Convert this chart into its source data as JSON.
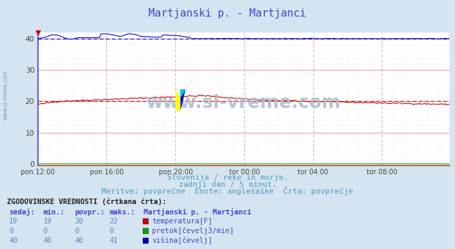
{
  "title": "Martjanski p. - Martjanci",
  "title_color": "#4444cc",
  "bg_color": "#d4e4f0",
  "plot_bg_color": "#ffffff",
  "xlabel_ticks": [
    "pon 12:00",
    "pon 16:00",
    "pon 20:00",
    "tor 00:00",
    "tor 04:00",
    "tor 08:00"
  ],
  "tick_positions": [
    0,
    48,
    96,
    144,
    192,
    240
  ],
  "total_points": 288,
  "ylim": [
    -0.5,
    42
  ],
  "yticks": [
    0,
    10,
    20,
    30,
    40
  ],
  "subtitle1": "Slovenija / reke in morje.",
  "subtitle2": "zadnji dan / 5 minut.",
  "subtitle3": "Meritve: povprečne  Enote: anglešaške  Črta: povprečje",
  "subtitle_color": "#5599bb",
  "grid_h_color": "#ee9999",
  "grid_v_color": "#ddaaaa",
  "grid_dot_color": "#ddcccc",
  "watermark": "www.si-vreme.com",
  "watermark_color": "#aabbcc",
  "temp_color": "#cc0000",
  "flow_color": "#00aa00",
  "height_color": "#0000bb",
  "table_header_color": "#4444cc",
  "table_data_color": "#5588bb",
  "legend_title": "Martjanski p. - Martjanci",
  "legend_items": [
    "temperatura[F]",
    "pretok[čevelj3/min]",
    "višina[čevelj]"
  ],
  "legend_colors": [
    "#cc0000",
    "#00aa00",
    "#0000bb"
  ],
  "table_label": "ZGODOVINSKE VREDNOSTI (črtkana črta):",
  "col_headers": [
    "sedaj:",
    "min.:",
    "povpr.:",
    "maks.:"
  ],
  "row_data": [
    [
      19,
      19,
      20,
      22
    ],
    [
      0,
      0,
      0,
      0
    ],
    [
      40,
      40,
      40,
      41
    ]
  ]
}
